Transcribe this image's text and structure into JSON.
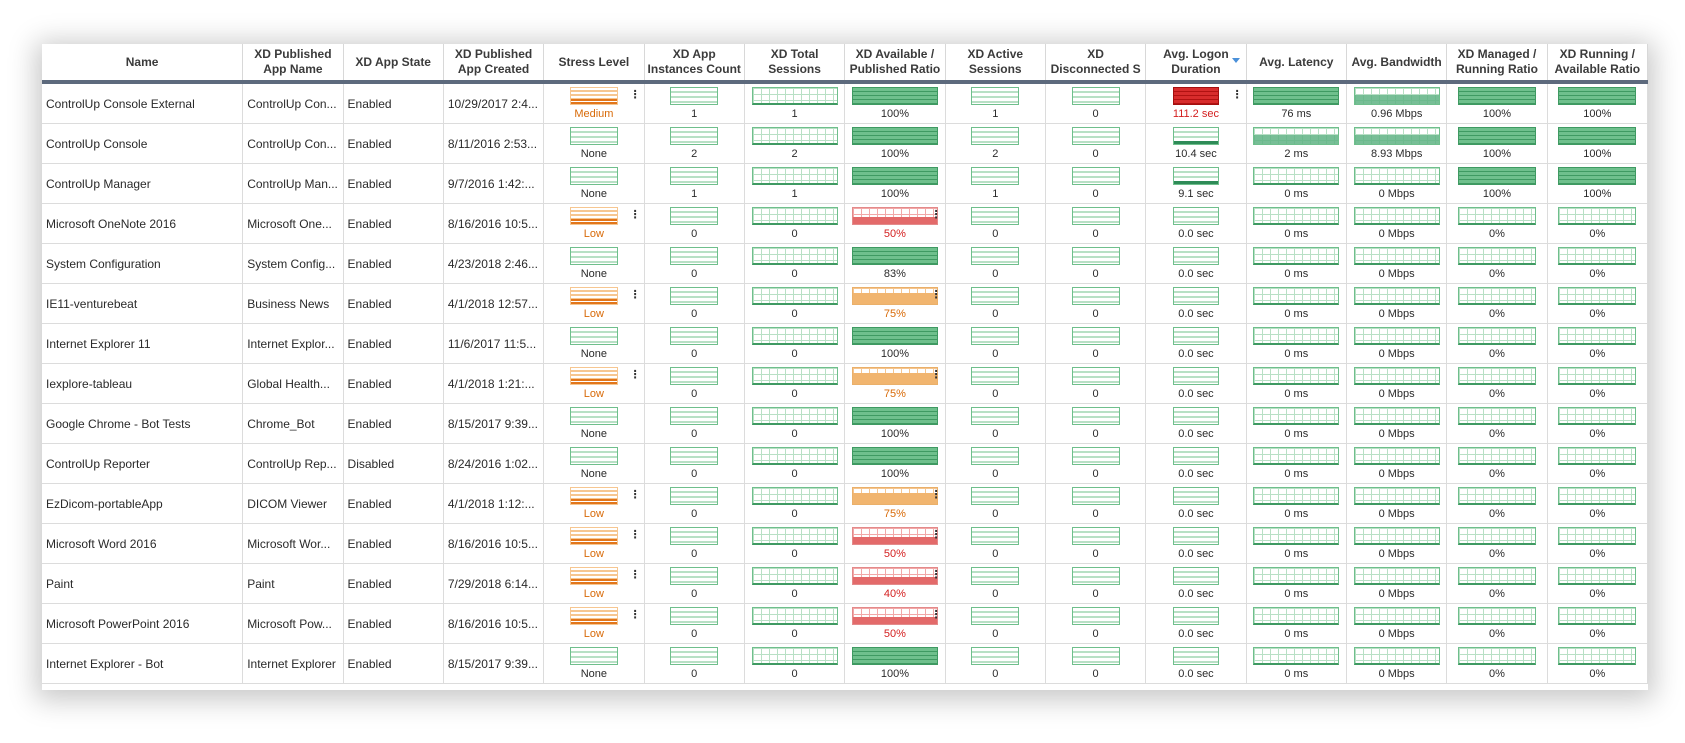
{
  "columns": [
    {
      "key": "name",
      "label": "Name"
    },
    {
      "key": "pub",
      "label": "XD Published App Name"
    },
    {
      "key": "state",
      "label": "XD App State"
    },
    {
      "key": "created",
      "label": "XD Published App Created"
    },
    {
      "key": "stress",
      "label": "Stress Level"
    },
    {
      "key": "inst",
      "label": "XD App Instances Count"
    },
    {
      "key": "total",
      "label": "XD Total Sessions"
    },
    {
      "key": "ratio",
      "label": "XD Available / Published Ratio"
    },
    {
      "key": "active",
      "label": "XD Active Sessions"
    },
    {
      "key": "disc",
      "label": "XD Disconnected S"
    },
    {
      "key": "logon",
      "label": "Avg. Logon Duration",
      "sorted": "desc"
    },
    {
      "key": "lat",
      "label": "Avg. Latency"
    },
    {
      "key": "bw",
      "label": "Avg. Bandwidth"
    },
    {
      "key": "mr",
      "label": "XD Managed / Running Ratio"
    },
    {
      "key": "ra",
      "label": "XD Running / Available Ratio"
    }
  ],
  "colors": {
    "green": "#3f9a62",
    "orange": "#e2761b",
    "red": "#d42020",
    "header_rule": "#5d6a7d"
  },
  "rows": [
    {
      "name": "ControlUp Console External",
      "pub": "ControlUp  Con...",
      "state": "Enabled",
      "created": "10/29/2017 2:4...",
      "stress": "Medium",
      "inst": "1",
      "total": "1",
      "ratio": "100%",
      "active": "1",
      "disc": "0",
      "logon": "111.2 sec",
      "lat": "76 ms",
      "bw": "0.96 Mbps",
      "mr": "100%",
      "ra": "100%"
    },
    {
      "name": "ControlUp Console",
      "pub": "ControlUp  Con...",
      "state": "Enabled",
      "created": "8/11/2016 2:53...",
      "stress": "None",
      "inst": "2",
      "total": "2",
      "ratio": "100%",
      "active": "2",
      "disc": "0",
      "logon": "10.4 sec",
      "lat": "2 ms",
      "bw": "8.93 Mbps",
      "mr": "100%",
      "ra": "100%"
    },
    {
      "name": "ControlUp Manager",
      "pub": "ControlUp  Man...",
      "state": "Enabled",
      "created": "9/7/2016 1:42:...",
      "stress": "None",
      "inst": "1",
      "total": "1",
      "ratio": "100%",
      "active": "1",
      "disc": "0",
      "logon": "9.1 sec",
      "lat": "0 ms",
      "bw": "0 Mbps",
      "mr": "100%",
      "ra": "100%"
    },
    {
      "name": "Microsoft OneNote 2016",
      "pub": "Microsoft  One...",
      "state": "Enabled",
      "created": "8/16/2016 10:5...",
      "stress": "Low",
      "inst": "0",
      "total": "0",
      "ratio": "50%",
      "active": "0",
      "disc": "0",
      "logon": "0.0 sec",
      "lat": "0 ms",
      "bw": "0 Mbps",
      "mr": "0%",
      "ra": "0%"
    },
    {
      "name": "System Configuration",
      "pub": "System  Config...",
      "state": "Enabled",
      "created": "4/23/2018 2:46...",
      "stress": "None",
      "inst": "0",
      "total": "0",
      "ratio": "83%",
      "active": "0",
      "disc": "0",
      "logon": "0.0 sec",
      "lat": "0 ms",
      "bw": "0 Mbps",
      "mr": "0%",
      "ra": "0%"
    },
    {
      "name": "IE11-venturebeat",
      "pub": "Business News",
      "state": "Enabled",
      "created": "4/1/2018 12:57...",
      "stress": "Low",
      "inst": "0",
      "total": "0",
      "ratio": "75%",
      "active": "0",
      "disc": "0",
      "logon": "0.0 sec",
      "lat": "0 ms",
      "bw": "0 Mbps",
      "mr": "0%",
      "ra": "0%"
    },
    {
      "name": "Internet Explorer 11",
      "pub": "Internet  Explor...",
      "state": "Enabled",
      "created": "11/6/2017 11:5...",
      "stress": "None",
      "inst": "0",
      "total": "0",
      "ratio": "100%",
      "active": "0",
      "disc": "0",
      "logon": "0.0 sec",
      "lat": "0 ms",
      "bw": "0 Mbps",
      "mr": "0%",
      "ra": "0%"
    },
    {
      "name": "Iexplore-tableau",
      "pub": "Global  Health...",
      "state": "Enabled",
      "created": "4/1/2018 1:21:...",
      "stress": "Low",
      "inst": "0",
      "total": "0",
      "ratio": "75%",
      "active": "0",
      "disc": "0",
      "logon": "0.0 sec",
      "lat": "0 ms",
      "bw": "0 Mbps",
      "mr": "0%",
      "ra": "0%"
    },
    {
      "name": "Google Chrome - Bot Tests",
      "pub": "Chrome_Bot",
      "state": "Enabled",
      "created": "8/15/2017 9:39...",
      "stress": "None",
      "inst": "0",
      "total": "0",
      "ratio": "100%",
      "active": "0",
      "disc": "0",
      "logon": "0.0 sec",
      "lat": "0 ms",
      "bw": "0 Mbps",
      "mr": "0%",
      "ra": "0%"
    },
    {
      "name": "ControlUp Reporter",
      "pub": "ControlUp  Rep...",
      "state": "Disabled",
      "created": "8/24/2016 1:02...",
      "stress": "None",
      "inst": "0",
      "total": "0",
      "ratio": "100%",
      "active": "0",
      "disc": "0",
      "logon": "0.0 sec",
      "lat": "0 ms",
      "bw": "0 Mbps",
      "mr": "0%",
      "ra": "0%"
    },
    {
      "name": "EzDicom-portableApp",
      "pub": "DICOM Viewer",
      "state": "Enabled",
      "created": "4/1/2018 1:12:...",
      "stress": "Low",
      "inst": "0",
      "total": "0",
      "ratio": "75%",
      "active": "0",
      "disc": "0",
      "logon": "0.0 sec",
      "lat": "0 ms",
      "bw": "0 Mbps",
      "mr": "0%",
      "ra": "0%"
    },
    {
      "name": "Microsoft Word 2016",
      "pub": "Microsoft  Wor...",
      "state": "Enabled",
      "created": "8/16/2016 10:5...",
      "stress": "Low",
      "inst": "0",
      "total": "0",
      "ratio": "50%",
      "active": "0",
      "disc": "0",
      "logon": "0.0 sec",
      "lat": "0 ms",
      "bw": "0 Mbps",
      "mr": "0%",
      "ra": "0%"
    },
    {
      "name": "Paint",
      "pub": "Paint",
      "state": "Enabled",
      "created": "7/29/2018 6:14...",
      "stress": "Low",
      "inst": "0",
      "total": "0",
      "ratio": "40%",
      "active": "0",
      "disc": "0",
      "logon": "0.0 sec",
      "lat": "0 ms",
      "bw": "0 Mbps",
      "mr": "0%",
      "ra": "0%"
    },
    {
      "name": "Microsoft PowerPoint 2016",
      "pub": "Microsoft  Pow...",
      "state": "Enabled",
      "created": "8/16/2016 10:5...",
      "stress": "Low",
      "inst": "0",
      "total": "0",
      "ratio": "50%",
      "active": "0",
      "disc": "0",
      "logon": "0.0 sec",
      "lat": "0 ms",
      "bw": "0 Mbps",
      "mr": "0%",
      "ra": "0%"
    },
    {
      "name": "Internet Explorer - Bot",
      "pub": "Internet Explorer",
      "state": "Enabled",
      "created": "8/15/2017 9:39...",
      "stress": "None",
      "inst": "0",
      "total": "0",
      "ratio": "100%",
      "active": "0",
      "disc": "0",
      "logon": "0.0 sec",
      "lat": "0 ms",
      "bw": "0 Mbps",
      "mr": "0%",
      "ra": "0%"
    }
  ]
}
